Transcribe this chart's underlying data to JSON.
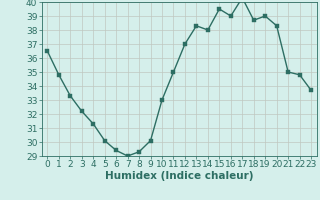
{
  "x": [
    0,
    1,
    2,
    3,
    4,
    5,
    6,
    7,
    8,
    9,
    10,
    11,
    12,
    13,
    14,
    15,
    16,
    17,
    18,
    19,
    20,
    21,
    22,
    23
  ],
  "y": [
    36.5,
    34.8,
    33.3,
    32.2,
    31.3,
    30.1,
    29.4,
    29.0,
    29.3,
    30.1,
    33.0,
    35.0,
    37.0,
    38.3,
    38.0,
    39.5,
    39.0,
    40.3,
    38.7,
    39.0,
    38.3,
    35.0,
    34.8,
    33.7
  ],
  "line_color": "#2d6e63",
  "marker_color": "#2d6e63",
  "bg_color": "#d5efeb",
  "grid_color": "#c0c8c0",
  "xlabel": "Humidex (Indice chaleur)",
  "ylim": [
    29,
    40
  ],
  "xlim": [
    -0.5,
    23.5
  ],
  "yticks": [
    29,
    30,
    31,
    32,
    33,
    34,
    35,
    36,
    37,
    38,
    39,
    40
  ],
  "xticks": [
    0,
    1,
    2,
    3,
    4,
    5,
    6,
    7,
    8,
    9,
    10,
    11,
    12,
    13,
    14,
    15,
    16,
    17,
    18,
    19,
    20,
    21,
    22,
    23
  ],
  "tick_color": "#2d6e63",
  "xlabel_fontsize": 7.5,
  "tick_fontsize": 6.5,
  "marker_size": 2.5,
  "line_width": 1.0
}
